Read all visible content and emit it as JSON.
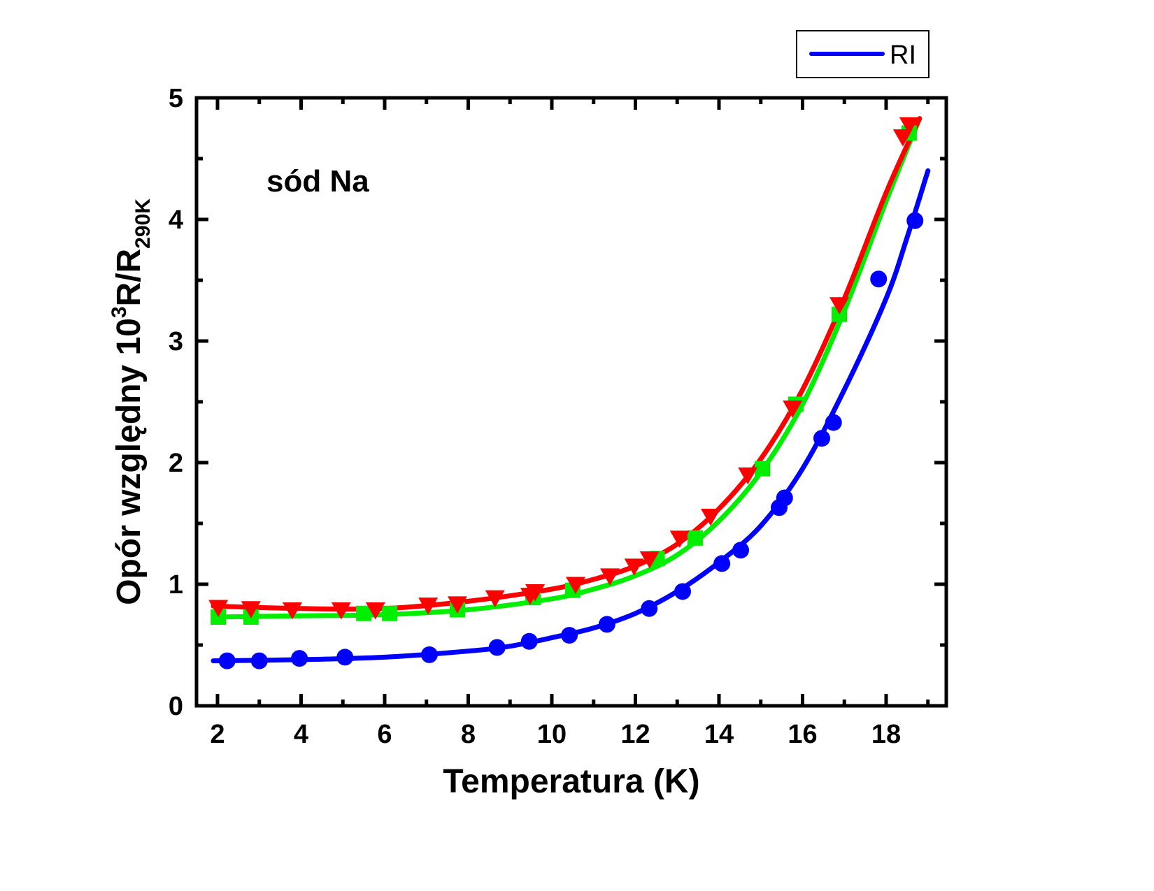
{
  "chart_data": {
    "type": "scatter",
    "title": "",
    "xlabel": "Temperatura (K)",
    "ylabel": {
      "prefix": "Opór względny 10",
      "sup": "3",
      "mid": "R/R",
      "sub": "290K"
    },
    "xlim": [
      1.6,
      19.7
    ],
    "ylim": [
      0,
      5
    ],
    "x_ticks": [
      2,
      4,
      6,
      8,
      10,
      12,
      14,
      16,
      18
    ],
    "x_tick_labels": [
      "2",
      "4",
      "6",
      "8",
      "10",
      "12",
      "14",
      "16",
      "18"
    ],
    "x_minor_ticks": [
      3,
      5,
      7,
      9,
      11,
      13,
      15,
      17,
      19
    ],
    "y_ticks": [
      0,
      1,
      2,
      3,
      4,
      5
    ],
    "y_tick_labels": [
      "0",
      "1",
      "2",
      "3",
      "4",
      "5"
    ],
    "y_minor_ticks": [
      0.5,
      1.5,
      2.5,
      3.5,
      4.5
    ],
    "grid": false,
    "annotation": "sód Na",
    "legend": {
      "placement": "top-right (outside plot)",
      "entries": [
        {
          "label": "RI",
          "color": "#0000ff",
          "style": "line"
        }
      ]
    },
    "series": [
      {
        "name": "red-triangles",
        "color": "#ff0000",
        "marker": "triangle-down",
        "points": [
          [
            2.02,
            0.81
          ],
          [
            2.8,
            0.8
          ],
          [
            3.79,
            0.79
          ],
          [
            4.96,
            0.79
          ],
          [
            5.78,
            0.79
          ],
          [
            7.04,
            0.83
          ],
          [
            7.74,
            0.84
          ],
          [
            8.64,
            0.89
          ],
          [
            9.48,
            0.91
          ],
          [
            9.6,
            0.94
          ],
          [
            10.57,
            1.0
          ],
          [
            11.39,
            1.07
          ],
          [
            11.97,
            1.15
          ],
          [
            12.34,
            1.21
          ],
          [
            13.06,
            1.38
          ],
          [
            13.8,
            1.56
          ],
          [
            14.69,
            1.9
          ],
          [
            15.76,
            2.45
          ],
          [
            16.88,
            3.3
          ],
          [
            18.4,
            4.68
          ],
          [
            18.55,
            4.78
          ]
        ],
        "fit": [
          [
            1.9,
            0.82
          ],
          [
            4.0,
            0.8
          ],
          [
            6.0,
            0.8
          ],
          [
            8.0,
            0.86
          ],
          [
            10.0,
            0.96
          ],
          [
            11.0,
            1.04
          ],
          [
            12.0,
            1.15
          ],
          [
            13.0,
            1.33
          ],
          [
            14.0,
            1.62
          ],
          [
            15.0,
            2.03
          ],
          [
            16.0,
            2.6
          ],
          [
            17.0,
            3.35
          ],
          [
            18.0,
            4.22
          ],
          [
            18.8,
            4.83
          ]
        ]
      },
      {
        "name": "green-squares",
        "color": "#00ee00",
        "marker": "square",
        "points": [
          [
            2.02,
            0.73
          ],
          [
            2.8,
            0.73
          ],
          [
            5.5,
            0.76
          ],
          [
            6.12,
            0.76
          ],
          [
            7.74,
            0.79
          ],
          [
            9.55,
            0.89
          ],
          [
            10.5,
            0.95
          ],
          [
            12.52,
            1.21
          ],
          [
            13.43,
            1.38
          ],
          [
            15.04,
            1.95
          ],
          [
            15.84,
            2.48
          ],
          [
            16.88,
            3.22
          ],
          [
            18.55,
            4.71
          ]
        ],
        "fit": [
          [
            1.9,
            0.73
          ],
          [
            4.0,
            0.74
          ],
          [
            6.0,
            0.75
          ],
          [
            8.0,
            0.79
          ],
          [
            10.0,
            0.88
          ],
          [
            11.0,
            0.96
          ],
          [
            12.0,
            1.07
          ],
          [
            13.0,
            1.24
          ],
          [
            14.0,
            1.52
          ],
          [
            15.0,
            1.92
          ],
          [
            16.0,
            2.48
          ],
          [
            17.0,
            3.25
          ],
          [
            18.0,
            4.15
          ],
          [
            18.8,
            4.83
          ]
        ]
      },
      {
        "name": "blue-circles",
        "color": "#0000ff",
        "marker": "circle",
        "points": [
          [
            2.23,
            0.37
          ],
          [
            3.0,
            0.37
          ],
          [
            3.96,
            0.39
          ],
          [
            5.05,
            0.4
          ],
          [
            7.07,
            0.42
          ],
          [
            8.69,
            0.48
          ],
          [
            9.46,
            0.53
          ],
          [
            10.42,
            0.58
          ],
          [
            11.32,
            0.67
          ],
          [
            12.33,
            0.8
          ],
          [
            13.13,
            0.94
          ],
          [
            14.07,
            1.17
          ],
          [
            14.52,
            1.28
          ],
          [
            15.44,
            1.63
          ],
          [
            15.57,
            1.71
          ],
          [
            16.46,
            2.2
          ],
          [
            16.74,
            2.33
          ],
          [
            17.82,
            3.51
          ],
          [
            18.69,
            3.99
          ]
        ],
        "fit": [
          [
            1.9,
            0.37
          ],
          [
            4.0,
            0.38
          ],
          [
            6.0,
            0.4
          ],
          [
            8.0,
            0.45
          ],
          [
            9.0,
            0.49
          ],
          [
            10.0,
            0.56
          ],
          [
            11.0,
            0.64
          ],
          [
            12.0,
            0.76
          ],
          [
            13.0,
            0.94
          ],
          [
            14.0,
            1.18
          ],
          [
            15.0,
            1.48
          ],
          [
            16.0,
            1.95
          ],
          [
            17.0,
            2.6
          ],
          [
            18.0,
            3.35
          ],
          [
            18.5,
            3.85
          ],
          [
            19.0,
            4.4
          ]
        ]
      }
    ]
  }
}
